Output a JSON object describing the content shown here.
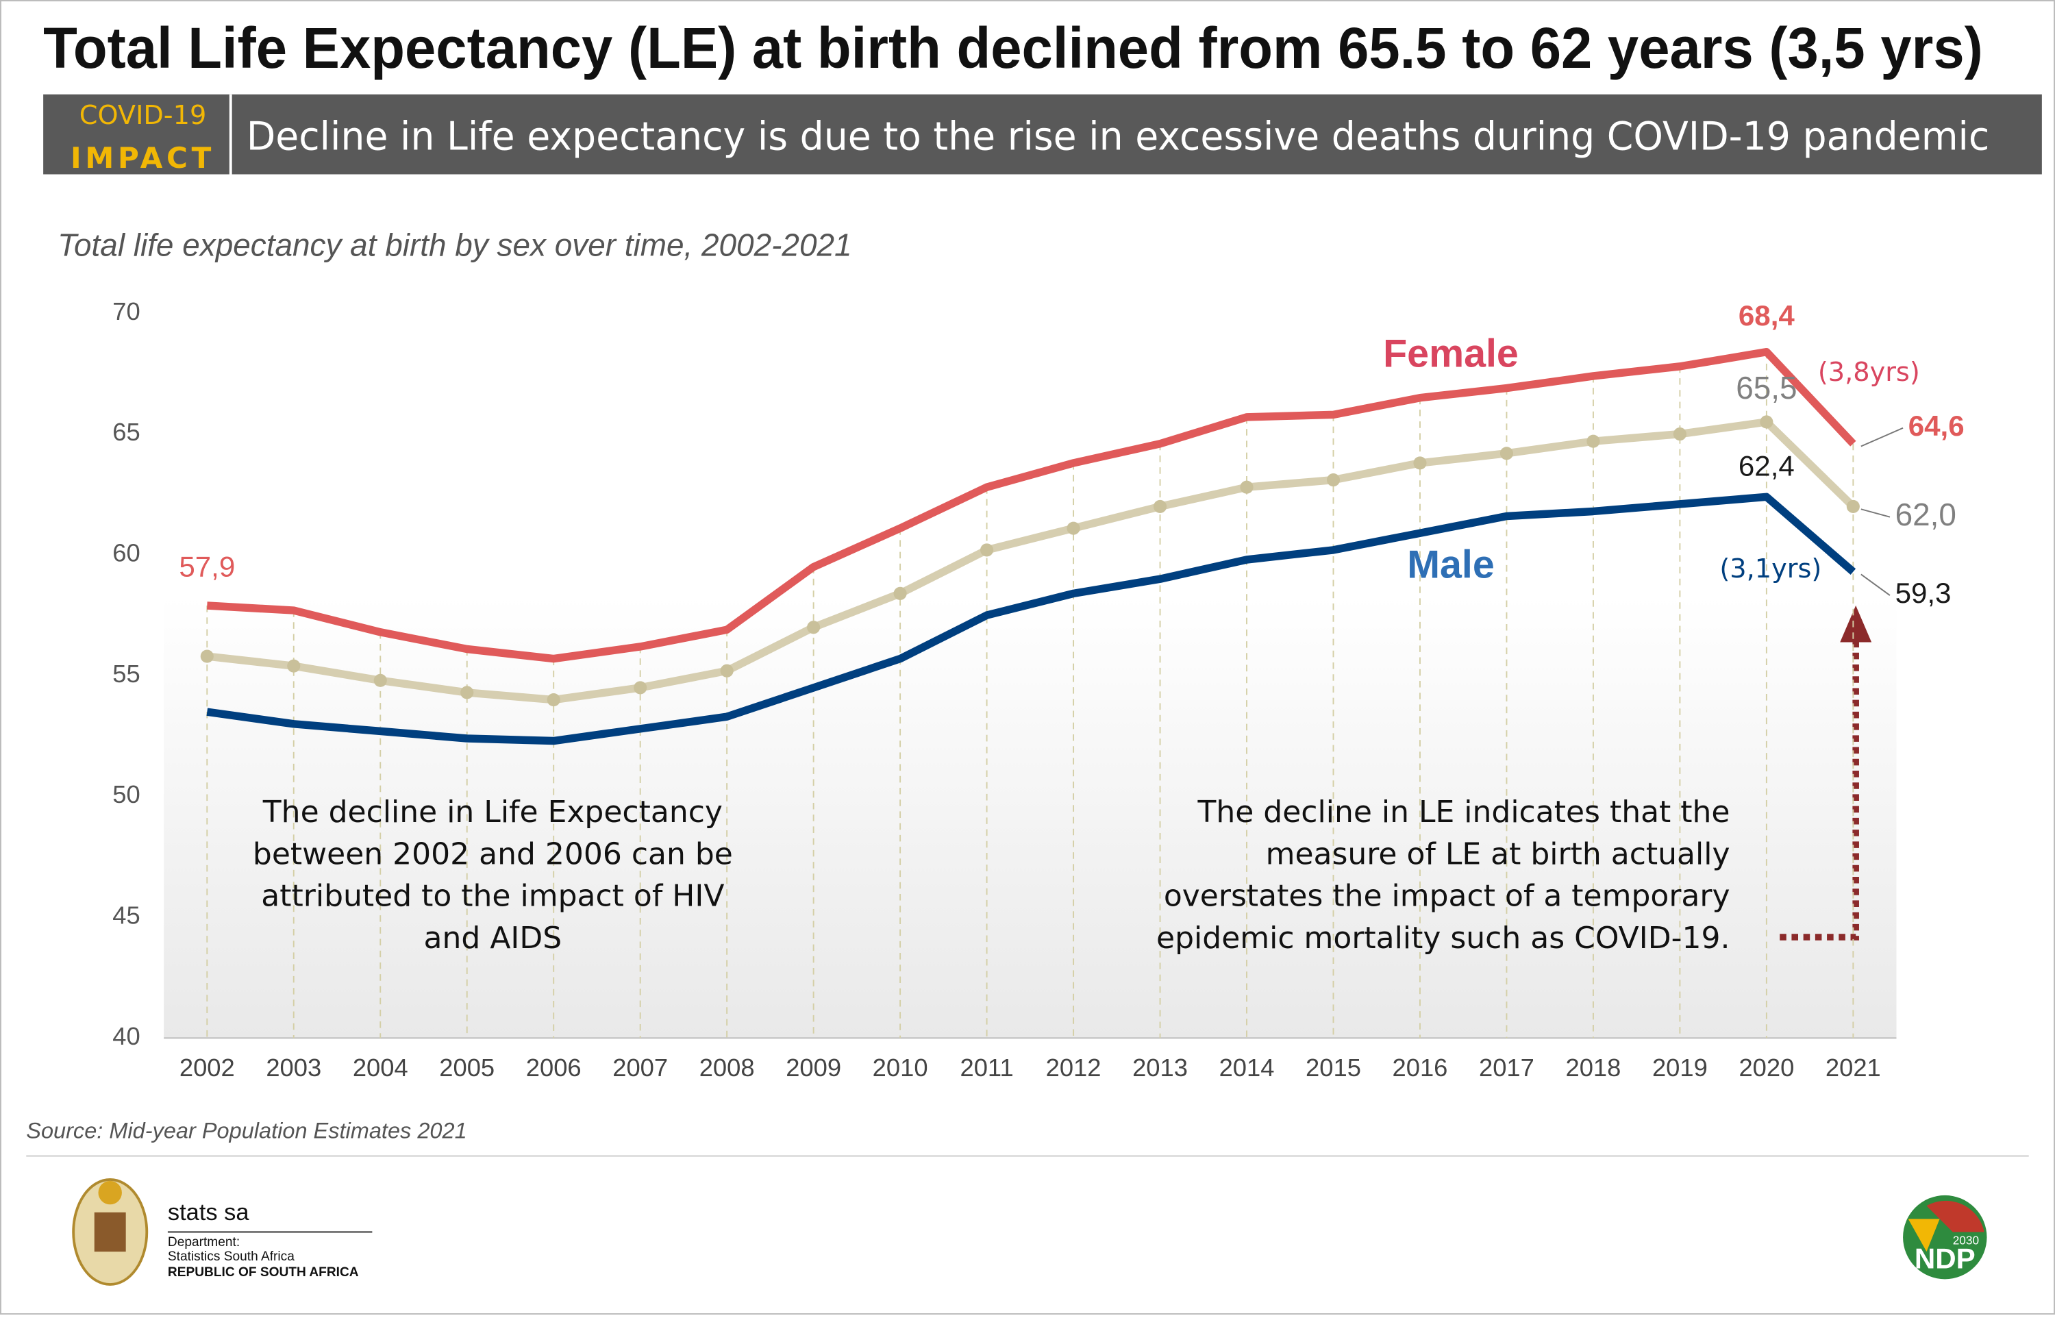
{
  "header": {
    "title": "Total Life Expectancy (LE)  at birth declined from 65.5 to 62 years (3,5 yrs)",
    "tag_line1": "COVID-19",
    "tag_line2": "IMPACT",
    "banner": "Decline in Life expectancy is due to the rise in excessive deaths during COVID-19 pandemic"
  },
  "chart_data": {
    "type": "line",
    "title": "Total life expectancy at birth  by sex over time, 2002-2021",
    "categories": [
      "2002",
      "2003",
      "2004",
      "2005",
      "2006",
      "2007",
      "2008",
      "2009",
      "2010",
      "2011",
      "2012",
      "2013",
      "2014",
      "2015",
      "2016",
      "2017",
      "2018",
      "2019",
      "2020",
      "2021"
    ],
    "ylim": [
      40,
      70
    ],
    "yticks": [
      40,
      45,
      50,
      55,
      60,
      65,
      70
    ],
    "series": [
      {
        "name": "Female",
        "color": "#e05a5a",
        "values": [
          57.9,
          57.7,
          56.8,
          56.1,
          55.7,
          56.2,
          56.9,
          59.5,
          61.1,
          62.8,
          63.8,
          64.6,
          65.7,
          65.8,
          66.5,
          66.9,
          67.4,
          67.8,
          68.4,
          64.6
        ],
        "value_labels": [
          "57,9",
          null,
          null,
          null,
          null,
          null,
          null,
          null,
          null,
          null,
          null,
          null,
          null,
          null,
          null,
          null,
          null,
          null,
          "68,4",
          "64,6"
        ]
      },
      {
        "color": "#d6ceb0",
        "values": [
          55.8,
          55.4,
          54.8,
          54.3,
          54.0,
          54.5,
          55.2,
          57.0,
          58.4,
          60.2,
          61.1,
          62.0,
          62.8,
          63.1,
          63.8,
          64.2,
          64.7,
          65.0,
          65.5,
          62.0
        ],
        "value_labels": [
          null,
          null,
          null,
          null,
          null,
          null,
          null,
          null,
          null,
          null,
          null,
          null,
          null,
          null,
          null,
          null,
          null,
          null,
          "65,5",
          "62,0"
        ]
      },
      {
        "name": "Male",
        "color": "#003f7f",
        "values": [
          53.5,
          53.0,
          52.7,
          52.4,
          52.3,
          52.8,
          53.3,
          54.5,
          55.7,
          57.5,
          58.4,
          59.0,
          59.8,
          60.2,
          60.9,
          61.6,
          61.8,
          62.1,
          62.4,
          59.3
        ],
        "value_labels": [
          null,
          null,
          null,
          null,
          null,
          null,
          null,
          null,
          null,
          null,
          null,
          null,
          null,
          null,
          null,
          null,
          null,
          null,
          "62,4",
          "59,3"
        ]
      }
    ],
    "annotations": {
      "female_drop": "(3,8yrs)",
      "male_drop": "(3,1yrs)",
      "left_note": [
        "The decline in Life Expectancy",
        "between 2002 and 2006 can be",
        "attributed to the impact of HIV",
        "and AIDS"
      ],
      "right_note": [
        "The decline in LE indicates that the",
        "measure of LE at birth actually",
        "overstates the impact of a temporary",
        "epidemic mortality such as COVID-19."
      ]
    },
    "source": "Source: Mid-year Population Estimates 2021"
  },
  "footer": {
    "org": "stats sa",
    "dept": "Department:",
    "dept_name": "Statistics South Africa",
    "country": "REPUBLIC OF SOUTH AFRICA",
    "ndp_year": "2030",
    "ndp": "NDP"
  }
}
